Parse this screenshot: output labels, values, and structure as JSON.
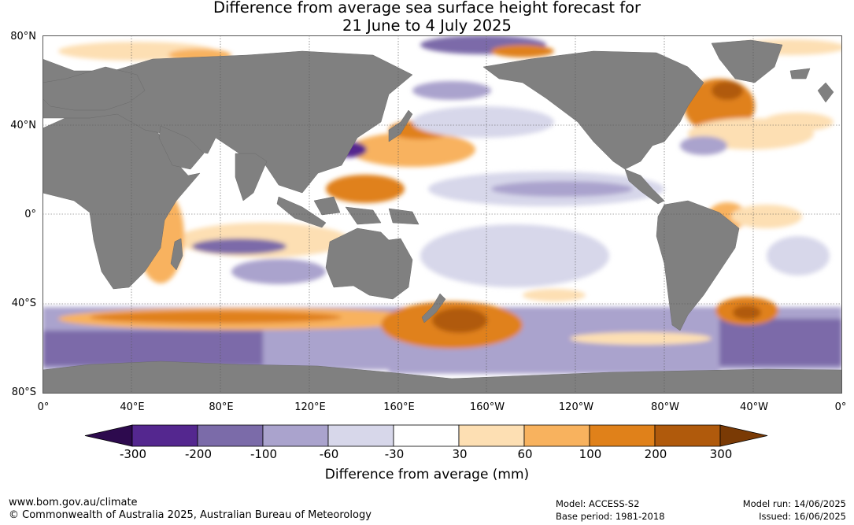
{
  "title": {
    "line1": "Difference from average sea surface height forecast for",
    "line2": "21 June to 4 July 2025"
  },
  "map": {
    "lat_labels": [
      "80°N",
      "40°N",
      "0°",
      "40°S",
      "80°S"
    ],
    "lon_labels": [
      "0°",
      "40°E",
      "80°E",
      "120°E",
      "160°E",
      "160°W",
      "120°W",
      "80°W",
      "40°W",
      "0°"
    ],
    "land_color": "#808080",
    "ocean_color": "#ffffff"
  },
  "colorbar": {
    "ticks": [
      "-300",
      "-200",
      "-100",
      "-60",
      "-30",
      "30",
      "60",
      "100",
      "200",
      "300"
    ],
    "colors": [
      "#2d0a4e",
      "#54278f",
      "#7b6ba9",
      "#aaa3cd",
      "#d7d7ea",
      "#ffffff",
      "#fddfb3",
      "#f8b25e",
      "#e0811a",
      "#b05a0c",
      "#7a3a05"
    ],
    "title": "Difference from average (mm)"
  },
  "footer": {
    "url": "www.bom.gov.au/climate",
    "copyright": "© Commonwealth of Australia 2025, Australian Bureau of Meteorology",
    "model": "Model: ACCESS-S2",
    "base_period": "Base period: 1981-2018",
    "model_run": "Model run: 14/06/2025",
    "issued": "Issued: 16/06/2025"
  }
}
